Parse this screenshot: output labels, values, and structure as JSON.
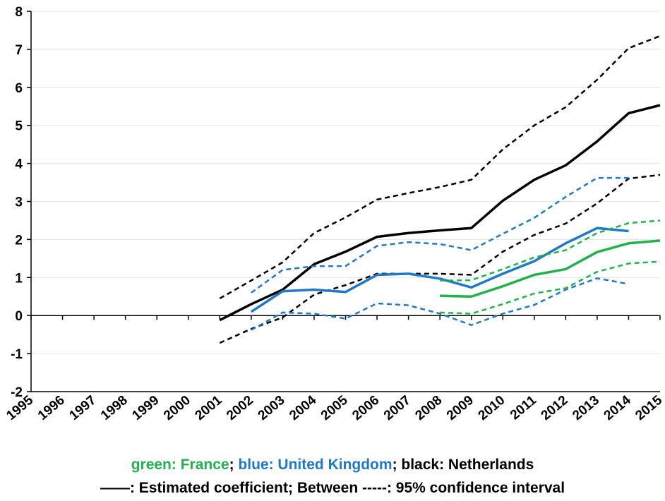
{
  "chart_data": {
    "type": "line",
    "categories": [
      "1995",
      "1996",
      "1997",
      "1998",
      "1999",
      "2000",
      "2001",
      "2002",
      "2003",
      "2004",
      "2005",
      "2006",
      "2007",
      "2008",
      "2009",
      "2010",
      "2011",
      "2012",
      "2013",
      "2014",
      "2015"
    ],
    "ylim": [
      -2,
      8
    ],
    "yticks": [
      -2,
      -1,
      0,
      1,
      2,
      3,
      4,
      5,
      6,
      7,
      8
    ],
    "grid": true,
    "series": [
      {
        "color": "#000000",
        "dash": false,
        "values": [
          null,
          null,
          null,
          null,
          null,
          null,
          -0.12,
          0.3,
          0.68,
          1.35,
          1.68,
          2.07,
          2.17,
          2.24,
          2.3,
          3.02,
          3.57,
          3.95,
          4.58,
          5.32,
          5.53
        ]
      },
      {
        "color": "#000000",
        "dash": true,
        "values": [
          null,
          null,
          null,
          null,
          null,
          null,
          0.45,
          0.92,
          1.4,
          2.17,
          2.58,
          3.05,
          3.22,
          3.38,
          3.57,
          4.37,
          5.0,
          5.48,
          6.2,
          7.03,
          7.35
        ]
      },
      {
        "color": "#000000",
        "dash": true,
        "values": [
          null,
          null,
          null,
          null,
          null,
          null,
          -0.72,
          -0.35,
          -0.05,
          0.55,
          0.8,
          1.1,
          1.1,
          1.1,
          1.07,
          1.68,
          2.12,
          2.42,
          2.95,
          3.6,
          3.7
        ]
      },
      {
        "color": "#1f78c8",
        "dash": false,
        "values": [
          null,
          null,
          null,
          null,
          null,
          null,
          null,
          0.1,
          0.64,
          0.68,
          0.62,
          1.07,
          1.1,
          0.97,
          0.74,
          1.1,
          1.43,
          1.9,
          2.3,
          2.22,
          null
        ]
      },
      {
        "color": "#1f78c8",
        "dash": true,
        "values": [
          null,
          null,
          null,
          null,
          null,
          null,
          null,
          0.6,
          1.2,
          1.3,
          1.3,
          1.83,
          1.93,
          1.88,
          1.72,
          2.15,
          2.57,
          3.12,
          3.62,
          3.62,
          null
        ]
      },
      {
        "color": "#1f78c8",
        "dash": true,
        "values": [
          null,
          null,
          null,
          null,
          null,
          null,
          null,
          -0.38,
          0.08,
          0.05,
          -0.08,
          0.32,
          0.27,
          0.05,
          -0.25,
          0.05,
          0.28,
          0.68,
          0.98,
          0.83,
          null
        ]
      },
      {
        "color": "#22b14c",
        "dash": false,
        "values": [
          null,
          null,
          null,
          null,
          null,
          null,
          null,
          null,
          null,
          null,
          null,
          null,
          null,
          0.52,
          0.5,
          0.77,
          1.07,
          1.22,
          1.67,
          1.9,
          1.97
        ]
      },
      {
        "color": "#22b14c",
        "dash": true,
        "values": [
          null,
          null,
          null,
          null,
          null,
          null,
          null,
          null,
          null,
          null,
          null,
          null,
          null,
          0.92,
          0.93,
          1.22,
          1.53,
          1.72,
          2.17,
          2.43,
          2.5
        ]
      },
      {
        "color": "#22b14c",
        "dash": true,
        "values": [
          null,
          null,
          null,
          null,
          null,
          null,
          null,
          null,
          null,
          null,
          null,
          null,
          null,
          0.08,
          0.05,
          0.3,
          0.58,
          0.72,
          1.15,
          1.37,
          1.42
        ]
      }
    ],
    "caption": [
      [
        {
          "text": "green: France",
          "color": "#22b14c"
        },
        {
          "text": "; ",
          "color": "#000000"
        },
        {
          "text": "blue: United Kingdom",
          "color": "#1f78c8"
        },
        {
          "text": "; black: Netherlands",
          "color": "#000000"
        }
      ],
      [
        {
          "text": "——: Estimated coefficient; Between -----: 95% confidence interval",
          "color": "#000000"
        }
      ]
    ]
  }
}
